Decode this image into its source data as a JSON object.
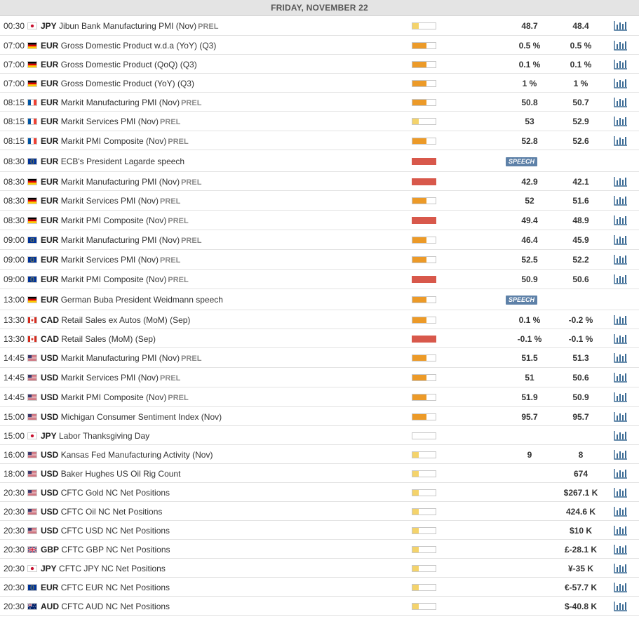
{
  "day_header": "FRIDAY, NOVEMBER 22",
  "colors": {
    "low": "#f4d36b",
    "medium": "#ec9a28",
    "high": "#d8584b",
    "speech_badge": "#5e81a8",
    "chart_icon": "#3a6a94"
  },
  "events": [
    {
      "time": "00:30",
      "flag": "jp",
      "currency": "JPY",
      "name": "Jibun Bank Manufacturing PMI (Nov)",
      "tag": "PREL",
      "impact": "low",
      "actual": "48.7",
      "previous": "48.4",
      "chart": true
    },
    {
      "time": "07:00",
      "flag": "de",
      "currency": "EUR",
      "name": "Gross Domestic Product w.d.a (YoY) (Q3)",
      "tag": "",
      "impact": "medium",
      "actual": "0.5 %",
      "previous": "0.5 %",
      "chart": true
    },
    {
      "time": "07:00",
      "flag": "de",
      "currency": "EUR",
      "name": "Gross Domestic Product (QoQ) (Q3)",
      "tag": "",
      "impact": "medium",
      "actual": "0.1 %",
      "previous": "0.1 %",
      "chart": true
    },
    {
      "time": "07:00",
      "flag": "de",
      "currency": "EUR",
      "name": "Gross Domestic Product (YoY) (Q3)",
      "tag": "",
      "impact": "medium",
      "actual": "1 %",
      "previous": "1 %",
      "chart": true
    },
    {
      "time": "08:15",
      "flag": "fr",
      "currency": "EUR",
      "name": "Markit Manufacturing PMI (Nov)",
      "tag": "PREL",
      "impact": "medium",
      "actual": "50.8",
      "previous": "50.7",
      "chart": true
    },
    {
      "time": "08:15",
      "flag": "fr",
      "currency": "EUR",
      "name": "Markit Services PMI (Nov)",
      "tag": "PREL",
      "impact": "low",
      "actual": "53",
      "previous": "52.9",
      "chart": true
    },
    {
      "time": "08:15",
      "flag": "fr",
      "currency": "EUR",
      "name": "Markit PMI Composite (Nov)",
      "tag": "PREL",
      "impact": "medium",
      "actual": "52.8",
      "previous": "52.6",
      "chart": true
    },
    {
      "time": "08:30",
      "flag": "eu",
      "currency": "EUR",
      "name": "ECB's President Lagarde speech",
      "tag": "",
      "impact": "high",
      "speech": "SPEECH",
      "actual": "",
      "previous": "",
      "chart": false
    },
    {
      "time": "08:30",
      "flag": "de",
      "currency": "EUR",
      "name": "Markit Manufacturing PMI (Nov)",
      "tag": "PREL",
      "impact": "high",
      "actual": "42.9",
      "previous": "42.1",
      "chart": true
    },
    {
      "time": "08:30",
      "flag": "de",
      "currency": "EUR",
      "name": "Markit Services PMI (Nov)",
      "tag": "PREL",
      "impact": "medium",
      "actual": "52",
      "previous": "51.6",
      "chart": true
    },
    {
      "time": "08:30",
      "flag": "de",
      "currency": "EUR",
      "name": "Markit PMI Composite (Nov)",
      "tag": "PREL",
      "impact": "high",
      "actual": "49.4",
      "previous": "48.9",
      "chart": true
    },
    {
      "time": "09:00",
      "flag": "eu",
      "currency": "EUR",
      "name": "Markit Manufacturing PMI (Nov)",
      "tag": "PREL",
      "impact": "medium",
      "actual": "46.4",
      "previous": "45.9",
      "chart": true
    },
    {
      "time": "09:00",
      "flag": "eu",
      "currency": "EUR",
      "name": "Markit Services PMI (Nov)",
      "tag": "PREL",
      "impact": "medium",
      "actual": "52.5",
      "previous": "52.2",
      "chart": true
    },
    {
      "time": "09:00",
      "flag": "eu",
      "currency": "EUR",
      "name": "Markit PMI Composite (Nov)",
      "tag": "PREL",
      "impact": "high",
      "actual": "50.9",
      "previous": "50.6",
      "chart": true
    },
    {
      "time": "13:00",
      "flag": "de",
      "currency": "EUR",
      "name": "German Buba President Weidmann speech",
      "tag": "",
      "impact": "medium",
      "speech": "SPEECH",
      "actual": "",
      "previous": "",
      "chart": false
    },
    {
      "time": "13:30",
      "flag": "ca",
      "currency": "CAD",
      "name": "Retail Sales ex Autos (MoM) (Sep)",
      "tag": "",
      "impact": "medium",
      "actual": "0.1 %",
      "previous": "-0.2 %",
      "chart": true
    },
    {
      "time": "13:30",
      "flag": "ca",
      "currency": "CAD",
      "name": "Retail Sales (MoM) (Sep)",
      "tag": "",
      "impact": "high",
      "actual": "-0.1 %",
      "previous": "-0.1 %",
      "chart": true
    },
    {
      "time": "14:45",
      "flag": "us",
      "currency": "USD",
      "name": "Markit Manufacturing PMI (Nov)",
      "tag": "PREL",
      "impact": "medium",
      "actual": "51.5",
      "previous": "51.3",
      "chart": true
    },
    {
      "time": "14:45",
      "flag": "us",
      "currency": "USD",
      "name": "Markit Services PMI (Nov)",
      "tag": "PREL",
      "impact": "medium",
      "actual": "51",
      "previous": "50.6",
      "chart": true
    },
    {
      "time": "14:45",
      "flag": "us",
      "currency": "USD",
      "name": "Markit PMI Composite (Nov)",
      "tag": "PREL",
      "impact": "medium",
      "actual": "51.9",
      "previous": "50.9",
      "chart": true
    },
    {
      "time": "15:00",
      "flag": "us",
      "currency": "USD",
      "name": "Michigan Consumer Sentiment Index (Nov)",
      "tag": "",
      "impact": "medium",
      "actual": "95.7",
      "previous": "95.7",
      "chart": true
    },
    {
      "time": "15:00",
      "flag": "jp",
      "currency": "JPY",
      "name": "Labor Thanksgiving Day",
      "tag": "",
      "impact": "none",
      "actual": "",
      "previous": "",
      "chart": true
    },
    {
      "time": "16:00",
      "flag": "us",
      "currency": "USD",
      "name": "Kansas Fed Manufacturing Activity (Nov)",
      "tag": "",
      "impact": "low",
      "actual": "9",
      "previous": "8",
      "chart": true
    },
    {
      "time": "18:00",
      "flag": "us",
      "currency": "USD",
      "name": "Baker Hughes US Oil Rig Count",
      "tag": "",
      "impact": "low",
      "actual": "",
      "previous": "674",
      "chart": true
    },
    {
      "time": "20:30",
      "flag": "us",
      "currency": "USD",
      "name": "CFTC Gold NC Net Positions",
      "tag": "",
      "impact": "low",
      "actual": "",
      "previous": "$267.1 K",
      "chart": true
    },
    {
      "time": "20:30",
      "flag": "us",
      "currency": "USD",
      "name": "CFTC Oil NC Net Positions",
      "tag": "",
      "impact": "low",
      "actual": "",
      "previous": "424.6 K",
      "chart": true
    },
    {
      "time": "20:30",
      "flag": "us",
      "currency": "USD",
      "name": "CFTC USD NC Net Positions",
      "tag": "",
      "impact": "low",
      "actual": "",
      "previous": "$10 K",
      "chart": true
    },
    {
      "time": "20:30",
      "flag": "gb",
      "currency": "GBP",
      "name": "CFTC GBP NC Net Positions",
      "tag": "",
      "impact": "low",
      "actual": "",
      "previous": "£-28.1 K",
      "chart": true
    },
    {
      "time": "20:30",
      "flag": "jp",
      "currency": "JPY",
      "name": "CFTC JPY NC Net Positions",
      "tag": "",
      "impact": "low",
      "actual": "",
      "previous": "¥-35 K",
      "chart": true
    },
    {
      "time": "20:30",
      "flag": "eu",
      "currency": "EUR",
      "name": "CFTC EUR NC Net Positions",
      "tag": "",
      "impact": "low",
      "actual": "",
      "previous": "€-57.7 K",
      "chart": true
    },
    {
      "time": "20:30",
      "flag": "au",
      "currency": "AUD",
      "name": "CFTC AUD NC Net Positions",
      "tag": "",
      "impact": "low",
      "actual": "",
      "previous": "$-40.8 K",
      "chart": true
    }
  ]
}
